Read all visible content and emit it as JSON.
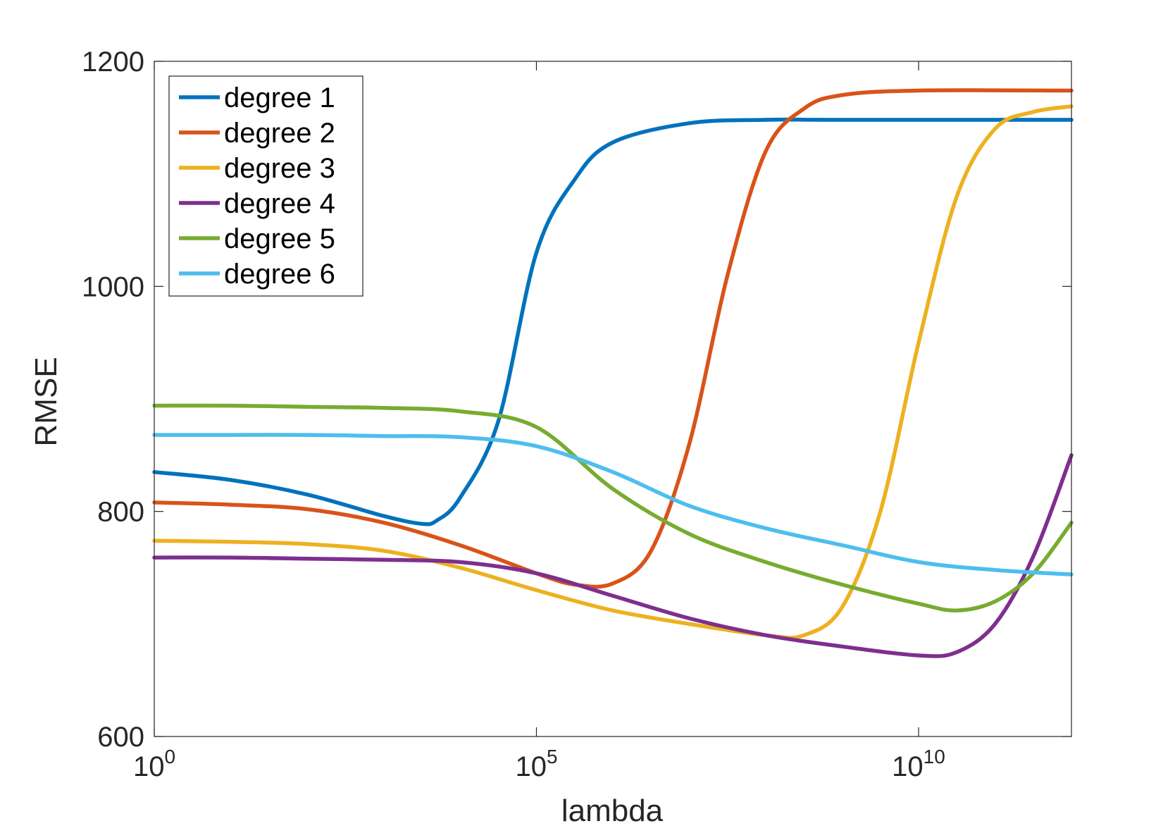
{
  "chart_data": {
    "type": "line",
    "title": "",
    "xlabel": "lambda",
    "ylabel": "RMSE",
    "xscale": "log",
    "xlim": [
      1,
      1000000000000.0
    ],
    "ylim": [
      600,
      1200
    ],
    "yticks": [
      600,
      800,
      1000,
      1200
    ],
    "xticks": [
      {
        "value": 1,
        "base": "10",
        "exp": "0"
      },
      {
        "value": 100000,
        "base": "10",
        "exp": "5"
      },
      {
        "value": 10000000000,
        "base": "10",
        "exp": "10"
      }
    ],
    "grid": false,
    "legend_position": "top-left",
    "series": [
      {
        "name": "degree 1",
        "color": "#0072BD",
        "points": [
          [
            1,
            835
          ],
          [
            10,
            828
          ],
          [
            100,
            815
          ],
          [
            1000,
            796
          ],
          [
            3162,
            789
          ],
          [
            5000,
            792
          ],
          [
            10000,
            812
          ],
          [
            31623,
            880
          ],
          [
            100000,
            1030
          ],
          [
            316228,
            1095
          ],
          [
            1000000,
            1128
          ],
          [
            10000000,
            1145
          ],
          [
            100000000,
            1148
          ],
          [
            1000000000,
            1148
          ],
          [
            1000000000000,
            1148
          ]
        ]
      },
      {
        "name": "degree 2",
        "color": "#D95319",
        "points": [
          [
            1,
            808
          ],
          [
            10,
            806
          ],
          [
            100,
            802
          ],
          [
            1000,
            790
          ],
          [
            10000,
            770
          ],
          [
            100000,
            745
          ],
          [
            316228,
            735
          ],
          [
            1000000,
            736
          ],
          [
            3162278,
            765
          ],
          [
            10000000,
            860
          ],
          [
            31623000,
            1010
          ],
          [
            100000000,
            1120
          ],
          [
            316228000,
            1158
          ],
          [
            1000000000,
            1170
          ],
          [
            10000000000,
            1174
          ],
          [
            1000000000000,
            1174
          ]
        ]
      },
      {
        "name": "degree 3",
        "color": "#EDB120",
        "points": [
          [
            1,
            774
          ],
          [
            10,
            773
          ],
          [
            100,
            771
          ],
          [
            1000,
            765
          ],
          [
            10000,
            750
          ],
          [
            100000,
            730
          ],
          [
            1000000,
            712
          ],
          [
            10000000,
            700
          ],
          [
            100000000,
            690
          ],
          [
            316228000,
            690
          ],
          [
            1000000000,
            715
          ],
          [
            3162278000,
            800
          ],
          [
            10000000000,
            950
          ],
          [
            31623000000,
            1080
          ],
          [
            100000000000,
            1140
          ],
          [
            316228000000,
            1155
          ],
          [
            1000000000000,
            1160
          ]
        ]
      },
      {
        "name": "degree 4",
        "color": "#7E2F8E",
        "points": [
          [
            1,
            759
          ],
          [
            10,
            759
          ],
          [
            100,
            758
          ],
          [
            1000,
            757
          ],
          [
            10000,
            755
          ],
          [
            100000,
            745
          ],
          [
            1000000,
            725
          ],
          [
            10000000,
            705
          ],
          [
            100000000,
            690
          ],
          [
            1000000000,
            680
          ],
          [
            10000000000,
            672
          ],
          [
            31623000000,
            675
          ],
          [
            100000000000,
            700
          ],
          [
            316228000000,
            760
          ],
          [
            1000000000000,
            850
          ]
        ]
      },
      {
        "name": "degree 5",
        "color": "#77AC30",
        "points": [
          [
            1,
            894
          ],
          [
            10,
            894
          ],
          [
            100,
            893
          ],
          [
            1000,
            892
          ],
          [
            10000,
            889
          ],
          [
            100000,
            875
          ],
          [
            1000000,
            820
          ],
          [
            10000000,
            780
          ],
          [
            100000000,
            755
          ],
          [
            1000000000,
            735
          ],
          [
            10000000000,
            718
          ],
          [
            31623000000,
            712
          ],
          [
            100000000000,
            720
          ],
          [
            316228000000,
            745
          ],
          [
            1000000000000,
            790
          ]
        ]
      },
      {
        "name": "degree 6",
        "color": "#4DBEEE",
        "points": [
          [
            1,
            868
          ],
          [
            10,
            868
          ],
          [
            100,
            868
          ],
          [
            1000,
            867
          ],
          [
            10000,
            866
          ],
          [
            100000,
            858
          ],
          [
            1000000,
            835
          ],
          [
            10000000,
            805
          ],
          [
            100000000,
            785
          ],
          [
            1000000000,
            770
          ],
          [
            10000000000,
            755
          ],
          [
            100000000000,
            748
          ],
          [
            1000000000000,
            744
          ]
        ]
      }
    ]
  }
}
